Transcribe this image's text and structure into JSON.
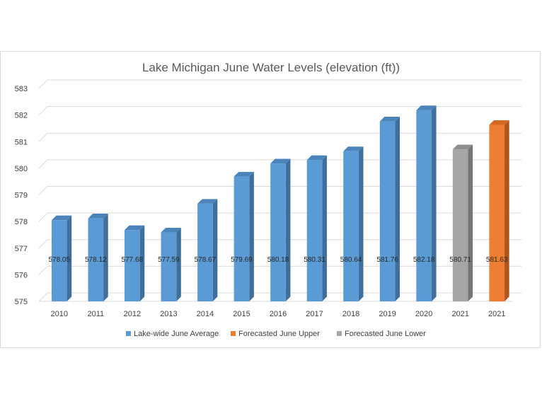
{
  "chart_data": {
    "type": "bar",
    "title": "Lake Michigan June Water Levels (elevation (ft))",
    "xlabel": "",
    "ylabel": "",
    "ylim": [
      575,
      583
    ],
    "yticks": [
      575,
      576,
      577,
      578,
      579,
      580,
      581,
      582,
      583
    ],
    "grid": true,
    "legend_position": "bottom",
    "categories": [
      "2010",
      "2011",
      "2012",
      "2013",
      "2014",
      "2015",
      "2016",
      "2017",
      "2018",
      "2019",
      "2020",
      "2021",
      "2021"
    ],
    "values": [
      578.05,
      578.12,
      577.68,
      577.59,
      578.67,
      579.69,
      580.18,
      580.31,
      580.64,
      581.76,
      582.18,
      580.71,
      581.63
    ],
    "bar_series": [
      0,
      0,
      0,
      0,
      0,
      0,
      0,
      0,
      0,
      0,
      0,
      2,
      1
    ],
    "series": [
      {
        "name": "Lake-wide June Average",
        "color": "#5b9bd5",
        "side_color": "#3f6f9c",
        "top_color": "#4a84bb"
      },
      {
        "name": "Forecasted June Upper",
        "color": "#ed7d31",
        "side_color": "#b0561c",
        "top_color": "#d46a22"
      },
      {
        "name": "Forecasted June Lower",
        "color": "#a5a5a5",
        "side_color": "#767676",
        "top_color": "#8e8e8e"
      }
    ]
  }
}
